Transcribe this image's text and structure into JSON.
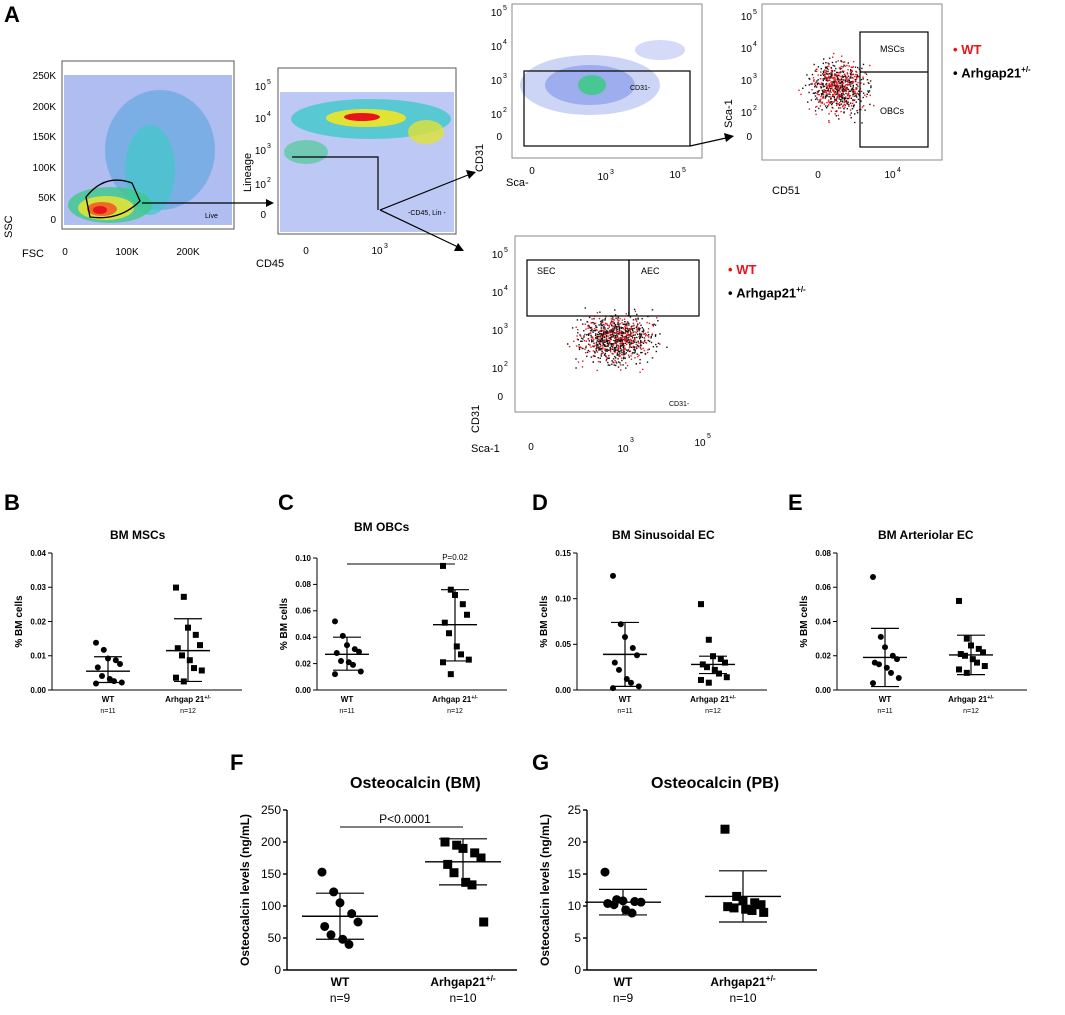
{
  "panel_labels": {
    "a": "A",
    "b": "B",
    "c": "C",
    "d": "D",
    "e": "E",
    "f": "F",
    "g": "G"
  },
  "colors": {
    "wt": "#e8141b",
    "arh": "#111111",
    "gate_wt": "#e8141b"
  },
  "flow": {
    "p1": {
      "ylabel": "SSC",
      "xlabel": "FSC",
      "yticks": [
        "250K",
        "200K",
        "150K",
        "100K",
        "50K",
        "0"
      ],
      "xticks": [
        "0",
        "100K",
        "200K"
      ],
      "gate": "Live"
    },
    "p2": {
      "ylabel": "Lineage",
      "xlabel": "CD45",
      "yticks": [
        "10",
        "10",
        "10",
        "10",
        "0"
      ],
      "yexp": [
        "5",
        "4",
        "3",
        "2",
        ""
      ],
      "xticks": [
        "0",
        "10"
      ],
      "xexp": [
        "",
        "3"
      ],
      "gate": "-CD45, Lin -"
    },
    "p3": {
      "ylabel": "CD31",
      "xlabel": "Sca-",
      "yticks": [
        "10",
        "10",
        "10",
        "10",
        "0"
      ],
      "yexp": [
        "5",
        "4",
        "3",
        "2",
        ""
      ],
      "xticks": [
        "0",
        "10",
        "10"
      ],
      "xexp": [
        "",
        "3",
        "5"
      ],
      "gate": "CD31-"
    },
    "p4": {
      "ylabel": "Sca-1",
      "xlabel": "CD51",
      "yticks": [
        "10",
        "10",
        "10",
        "10",
        "0"
      ],
      "yexp": [
        "5",
        "4",
        "3",
        "2",
        ""
      ],
      "xticks": [
        "0",
        "10"
      ],
      "xexp": [
        "",
        "4"
      ],
      "gate1": "MSCs",
      "gate2": "OBCs"
    },
    "p5": {
      "ylabel": "CD31",
      "xlabel": "Sca-1",
      "yticks": [
        "10",
        "10",
        "10",
        "10",
        "0"
      ],
      "yexp": [
        "5",
        "4",
        "3",
        "2",
        ""
      ],
      "xticks": [
        "0",
        "10",
        "10"
      ],
      "xexp": [
        "",
        "3",
        "5"
      ],
      "gate1": "SEC",
      "gate2": "AEC",
      "gate3": "CD31-"
    },
    "legend1": {
      "wt": "WT",
      "arh": "Arhgap21",
      "arh_sup": "+/-"
    },
    "legend2": {
      "wt": "WT",
      "arh": "Arhgap21",
      "arh_sup": "+/-"
    }
  },
  "chart_data": [
    {
      "id": "B",
      "type": "scatter",
      "title": "BM MSCs",
      "ylabel": "% BM cells",
      "ylim": [
        0,
        0.04
      ],
      "yticks": [
        "0.00",
        "0.01",
        "0.02",
        "0.03",
        "0.04"
      ],
      "ytick_values": [
        0,
        0.01,
        0.02,
        0.03,
        0.04
      ],
      "groups": [
        {
          "name": "WT",
          "n": "n=11",
          "mean": 0.0055,
          "sd_low": 0.0022,
          "sd_high": 0.0097,
          "marker": "circle",
          "values": [
            0.0138,
            0.0117,
            0.0092,
            0.0087,
            0.0076,
            0.0066,
            0.0041,
            0.0032,
            0.0026,
            0.0022,
            0.0019
          ]
        },
        {
          "name": "Arhgap 21",
          "sup": "+/-",
          "n": "n=12",
          "mean": 0.0115,
          "sd_low": 0.0025,
          "sd_high": 0.0208,
          "marker": "square",
          "values": [
            0.0299,
            0.0272,
            0.0182,
            0.0161,
            0.0131,
            0.0122,
            0.0101,
            0.0087,
            0.0064,
            0.0057,
            0.0036,
            0.0025
          ]
        }
      ]
    },
    {
      "id": "C",
      "type": "scatter",
      "title": "BM OBCs",
      "ylabel": "% BM cells",
      "ylim": [
        0,
        0.1
      ],
      "yticks": [
        "0.00",
        "0.02",
        "0.04",
        "0.06",
        "0.08",
        "0.10"
      ],
      "ytick_values": [
        0,
        0.02,
        0.04,
        0.06,
        0.08,
        0.1
      ],
      "pvalue": "P=0.02",
      "groups": [
        {
          "name": "WT",
          "n": "n=11",
          "mean": 0.027,
          "sd_low": 0.015,
          "sd_high": 0.04,
          "marker": "circle",
          "values": [
            0.052,
            0.041,
            0.034,
            0.031,
            0.029,
            0.028,
            0.022,
            0.021,
            0.019,
            0.014,
            0.012
          ]
        },
        {
          "name": "Arhgap 21",
          "sup": "+/-",
          "n": "n=12",
          "mean": 0.0495,
          "sd_low": 0.022,
          "sd_high": 0.076,
          "marker": "square",
          "values": [
            0.094,
            0.076,
            0.072,
            0.065,
            0.057,
            0.051,
            0.043,
            0.033,
            0.027,
            0.023,
            0.021,
            0.012
          ]
        }
      ]
    },
    {
      "id": "D",
      "type": "scatter",
      "title": "BM Sinusoidal EC",
      "ylabel": "% BM cells",
      "ylim": [
        0,
        0.15
      ],
      "yticks": [
        "0.00",
        "0.05",
        "0.10",
        "0.15"
      ],
      "ytick_values": [
        0,
        0.05,
        0.1,
        0.15
      ],
      "groups": [
        {
          "name": "WT",
          "n": "n=11",
          "mean": 0.039,
          "sd_low": 0.004,
          "sd_high": 0.074,
          "marker": "circle",
          "values": [
            0.125,
            0.072,
            0.058,
            0.046,
            0.038,
            0.03,
            0.022,
            0.012,
            0.008,
            0.004,
            0.002
          ]
        },
        {
          "name": "Arhgap 21",
          "sup": "+/-",
          "n": "n=12",
          "mean": 0.028,
          "sd_low": 0.018,
          "sd_high": 0.037,
          "marker": "square",
          "values": [
            0.094,
            0.055,
            0.037,
            0.034,
            0.03,
            0.028,
            0.025,
            0.022,
            0.018,
            0.014,
            0.011,
            0.008
          ]
        }
      ]
    },
    {
      "id": "E",
      "type": "scatter",
      "title": "BM Arteriolar EC",
      "ylabel": "% BM cells",
      "ylim": [
        0,
        0.08
      ],
      "yticks": [
        "0.00",
        "0.02",
        "0.04",
        "0.06",
        "0.08"
      ],
      "ytick_values": [
        0,
        0.02,
        0.04,
        0.06,
        0.08
      ],
      "groups": [
        {
          "name": "WT",
          "n": "n=11",
          "mean": 0.019,
          "sd_low": 0.002,
          "sd_high": 0.036,
          "marker": "circle",
          "values": [
            0.066,
            0.031,
            0.025,
            0.02,
            0.018,
            0.016,
            0.015,
            0.013,
            0.01,
            0.007,
            0.004
          ]
        },
        {
          "name": "Arhgap 21",
          "sup": "+/-",
          "n": "n=12",
          "mean": 0.0205,
          "sd_low": 0.009,
          "sd_high": 0.032,
          "marker": "square",
          "values": [
            0.052,
            0.03,
            0.026,
            0.024,
            0.022,
            0.021,
            0.02,
            0.018,
            0.016,
            0.014,
            0.012,
            0.01
          ]
        }
      ]
    },
    {
      "id": "F",
      "type": "scatter",
      "title": "Osteocalcin (BM)",
      "ylabel": "Osteocalcin levels (ng/mL)",
      "ylim": [
        0,
        250
      ],
      "yticks": [
        "0",
        "50",
        "100",
        "150",
        "200",
        "250"
      ],
      "ytick_values": [
        0,
        50,
        100,
        150,
        200,
        250
      ],
      "pvalue": "P<0.0001",
      "groups": [
        {
          "name": "WT",
          "n": "n=9",
          "mean": 84,
          "sd_low": 48,
          "sd_high": 120,
          "marker": "circle",
          "values": [
            153,
            122,
            105,
            88,
            75,
            68,
            55,
            48,
            40
          ]
        },
        {
          "name": "Arhgap21",
          "sup": "+/-",
          "n": "n=10",
          "mean": 169,
          "sd_low": 133,
          "sd_high": 205,
          "marker": "square",
          "values": [
            200,
            195,
            190,
            183,
            175,
            165,
            152,
            137,
            133,
            75
          ]
        }
      ]
    },
    {
      "id": "G",
      "type": "scatter",
      "title": "Osteocalcin (PB)",
      "ylabel": "Osteocalcin levels (ng/mL)",
      "ylim": [
        0,
        25
      ],
      "yticks": [
        "0",
        "5",
        "10",
        "15",
        "20",
        "25"
      ],
      "ytick_values": [
        0,
        5,
        10,
        15,
        20,
        25
      ],
      "groups": [
        {
          "name": "WT",
          "n": "n=9",
          "mean": 10.6,
          "sd_low": 8.6,
          "sd_high": 12.6,
          "marker": "circle",
          "values": [
            15.3,
            11.0,
            10.8,
            10.7,
            10.6,
            10.4,
            10.2,
            9.4,
            8.9
          ]
        },
        {
          "name": "Arhgap21",
          "sup": "+/-",
          "n": "n=10",
          "mean": 11.5,
          "sd_low": 7.5,
          "sd_high": 15.5,
          "marker": "square",
          "values": [
            22.0,
            11.5,
            10.8,
            10.5,
            10.2,
            9.9,
            9.7,
            9.5,
            9.3,
            9.0
          ]
        }
      ]
    }
  ]
}
